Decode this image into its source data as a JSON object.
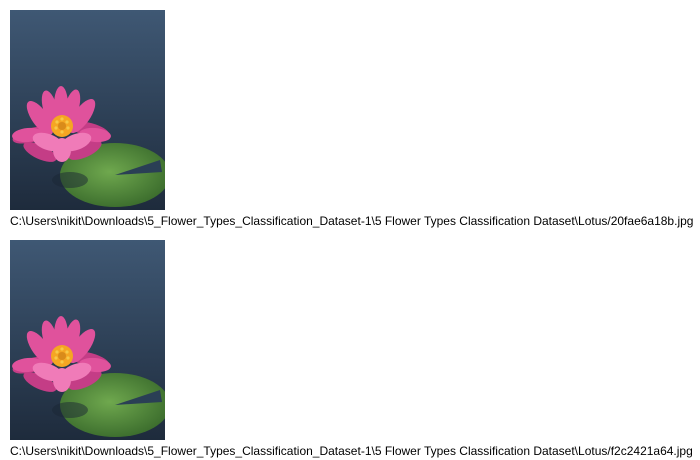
{
  "images": [
    {
      "alt": "Lotus",
      "path": "C:\\Users\\nikit\\Downloads\\5_Flower_Types_Classification_Dataset-1\\5 Flower Types Classification Dataset\\Lotus/20fae6a18b.jpg"
    },
    {
      "alt": "Lotus",
      "path": "C:\\Users\\nikit\\Downloads\\5_Flower_Types_Classification_Dataset-1\\5 Flower Types Classification Dataset\\Lotus/f2c2421a64.jpg"
    }
  ],
  "colors": {
    "background_top": "#3d5570",
    "background_bottom": "#1f2d40",
    "petal": "#e0529c",
    "petal_light": "#f58cc4",
    "center": "#f5a623",
    "lily_pad": "#4f8a3b",
    "lily_pad_dark": "#3a6b2c"
  }
}
